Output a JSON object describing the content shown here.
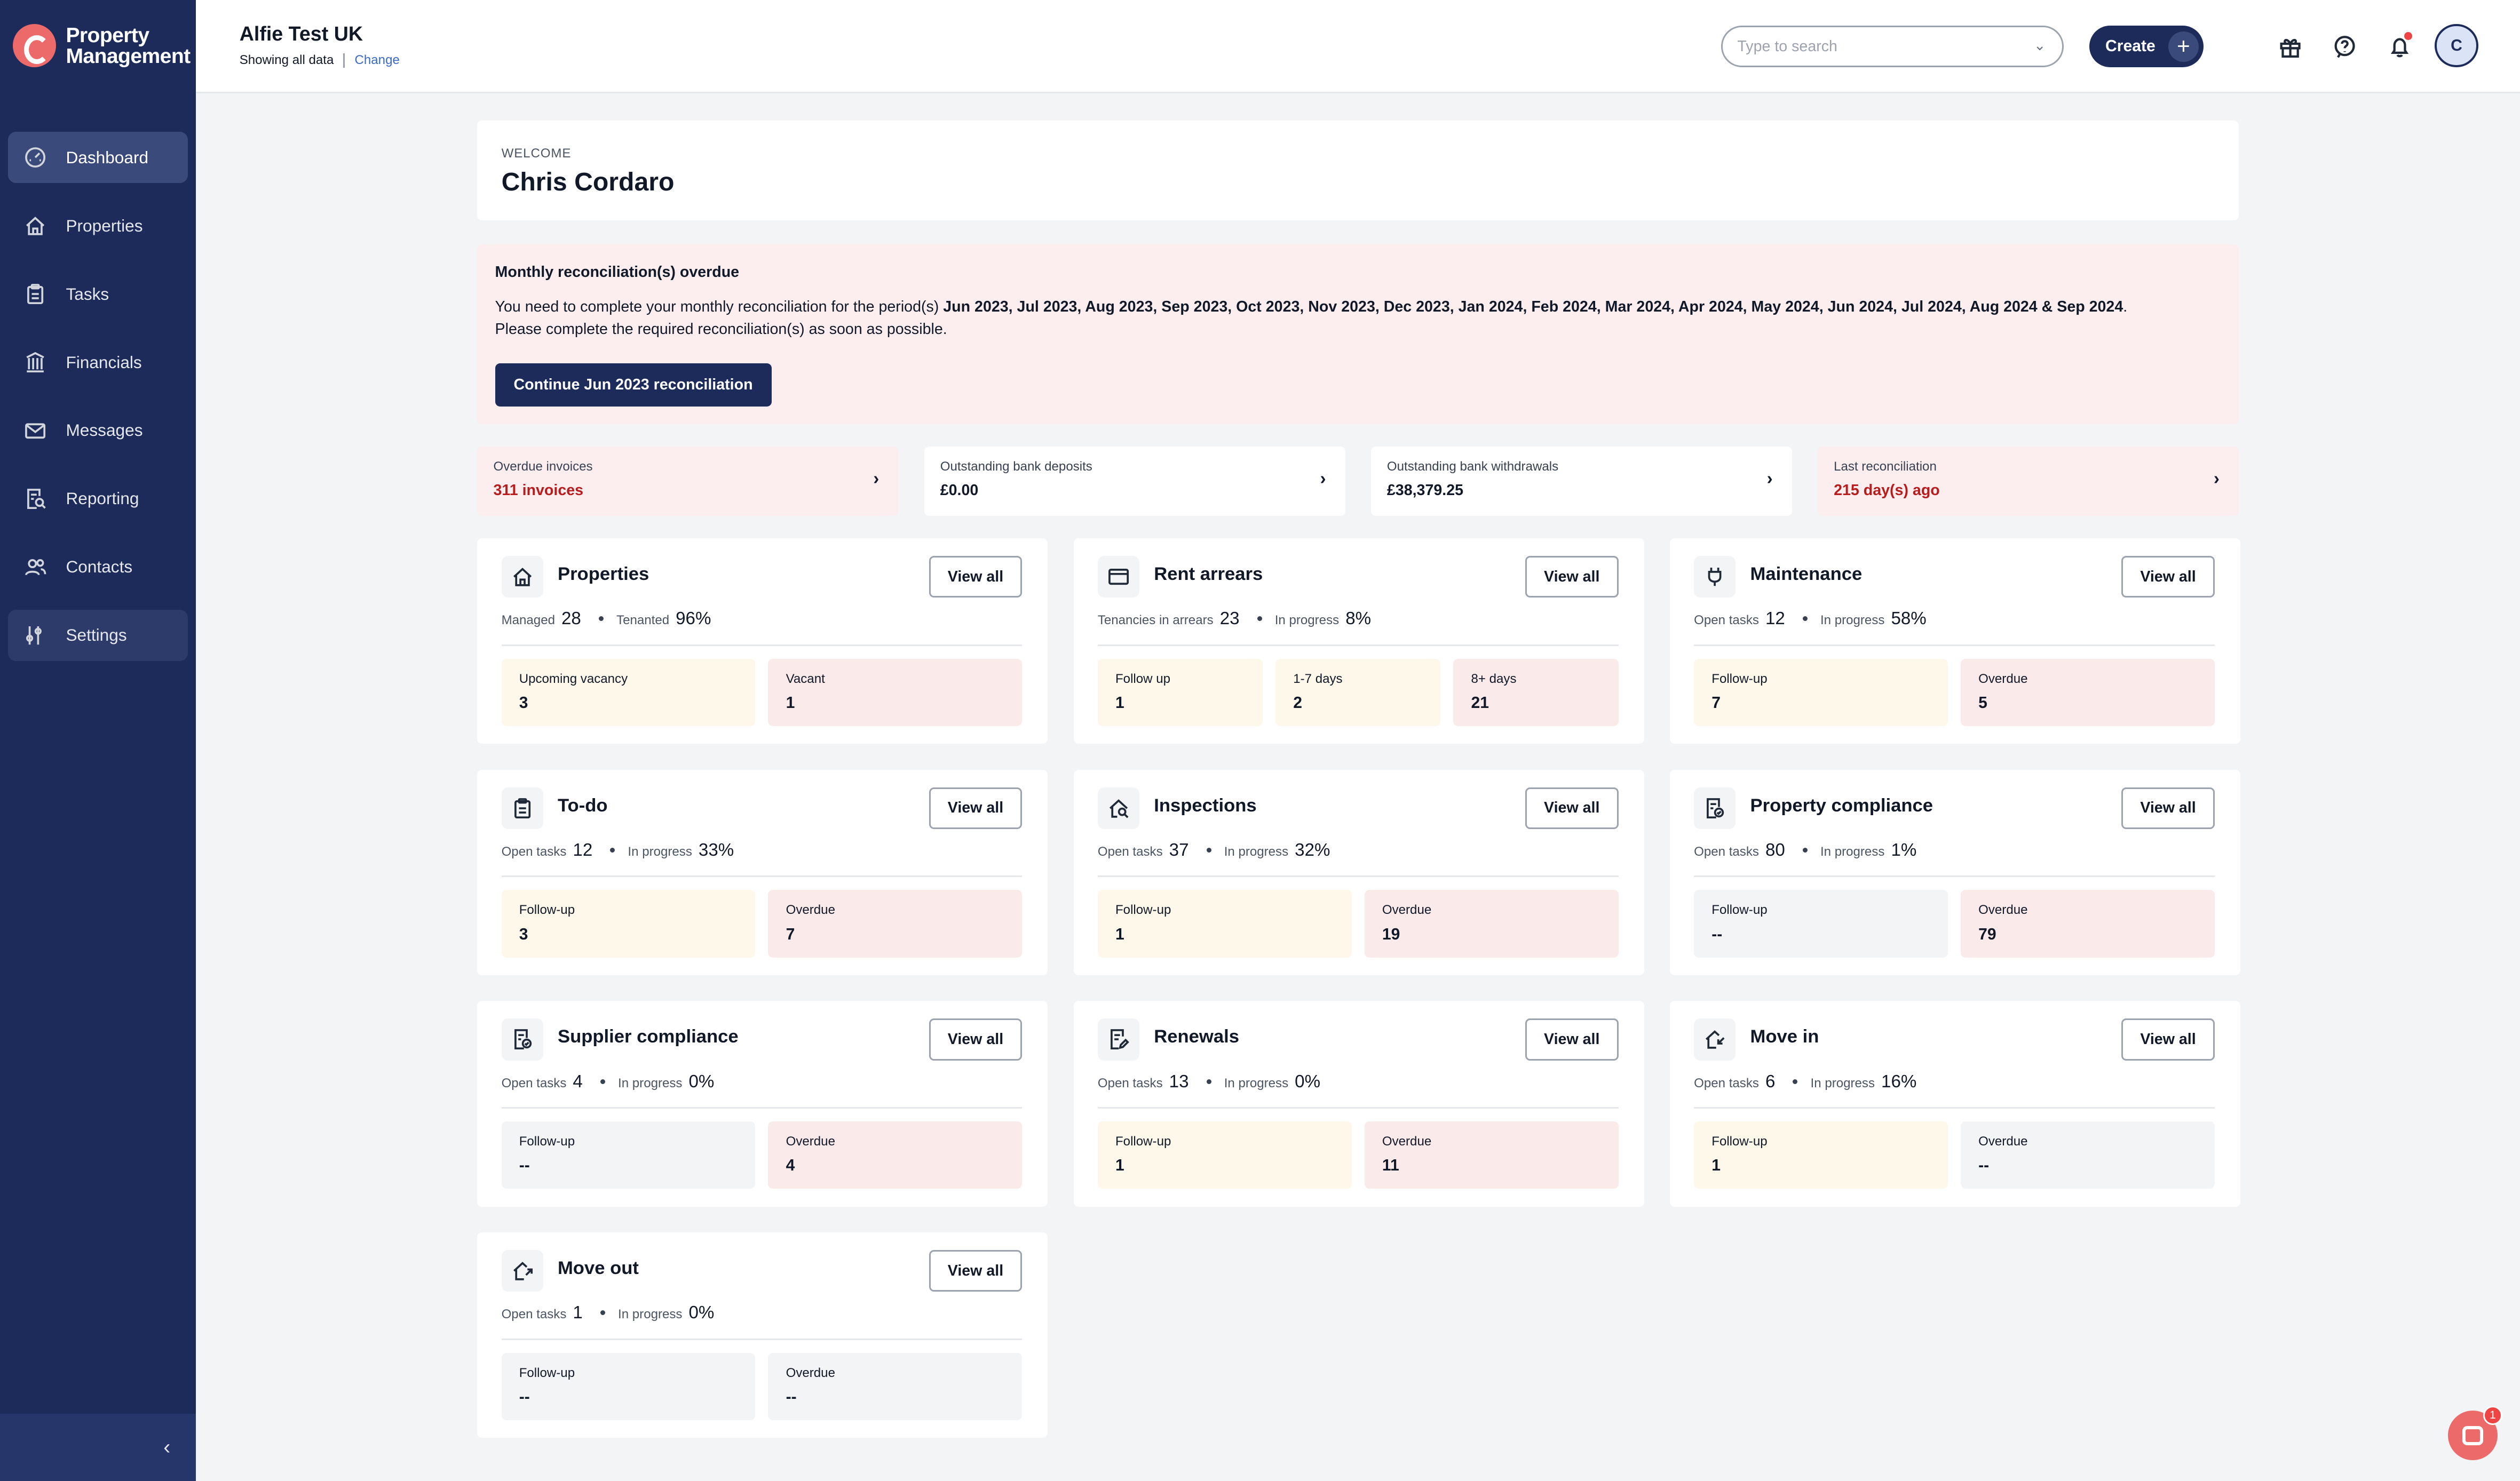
{
  "brand": {
    "name_line1": "Property",
    "name_line2": "Management",
    "color": "#ec6a6a"
  },
  "sidebar": {
    "items": [
      {
        "label": "Dashboard",
        "icon": "gauge-icon"
      },
      {
        "label": "Properties",
        "icon": "house-icon"
      },
      {
        "label": "Tasks",
        "icon": "clipboard-icon"
      },
      {
        "label": "Financials",
        "icon": "bank-icon"
      },
      {
        "label": "Messages",
        "icon": "envelope-icon"
      },
      {
        "label": "Reporting",
        "icon": "report-search-icon"
      },
      {
        "label": "Contacts",
        "icon": "people-icon"
      },
      {
        "label": "Settings",
        "icon": "sliders-icon"
      }
    ],
    "collapse_icon": "‹"
  },
  "header": {
    "account_name": "Alfie Test UK",
    "showing": "Showing all data",
    "change": "Change",
    "search_placeholder": "Type to search",
    "create_label": "Create",
    "avatar_initial": "C"
  },
  "welcome": {
    "label": "WELCOME",
    "name": "Chris Cordaro"
  },
  "alert": {
    "title": "Monthly reconciliation(s) overdue",
    "msg_prefix": "You need to complete your monthly reconciliation for the period(s) ",
    "periods": "Jun 2023, Jul 2023, Aug 2023, Sep 2023, Oct 2023, Nov 2023, Dec 2023, Jan 2024, Feb 2024, Mar 2024, Apr 2024, May 2024, Jun 2024, Jul 2024, Aug 2024 & Sep 2024",
    "msg_suffix": ".",
    "msg_line2": "Please complete the required reconciliation(s) as soon as possible.",
    "button": "Continue Jun 2023 reconciliation"
  },
  "summary": [
    {
      "label": "Overdue invoices",
      "value": "311 invoices"
    },
    {
      "label": "Outstanding bank deposits",
      "value": "£0.00"
    },
    {
      "label": "Outstanding bank withdrawals",
      "value": "£38,379.25"
    },
    {
      "label": "Last reconciliation",
      "value": "215 day(s) ago"
    }
  ],
  "view_all": "View all",
  "widgets": {
    "properties": {
      "title": "Properties",
      "s1_label": "Managed",
      "s1_value": "28",
      "s2_label": "Tenanted",
      "s2_value": "96%",
      "tiles": [
        {
          "label": "Upcoming vacancy",
          "value": "3"
        },
        {
          "label": "Vacant",
          "value": "1"
        }
      ]
    },
    "rent_arrears": {
      "title": "Rent arrears",
      "s1_label": "Tenancies in arrears",
      "s1_value": "23",
      "s2_label": "In progress",
      "s2_value": "8%",
      "tiles": [
        {
          "label": "Follow up",
          "value": "1"
        },
        {
          "label": "1-7 days",
          "value": "2"
        },
        {
          "label": "8+ days",
          "value": "21"
        }
      ]
    },
    "maintenance": {
      "title": "Maintenance",
      "s1_label": "Open tasks",
      "s1_value": "12",
      "s2_label": "In progress",
      "s2_value": "58%",
      "tiles": [
        {
          "label": "Follow-up",
          "value": "7"
        },
        {
          "label": "Overdue",
          "value": "5"
        }
      ]
    },
    "todo": {
      "title": "To-do",
      "s1_label": "Open tasks",
      "s1_value": "12",
      "s2_label": "In progress",
      "s2_value": "33%",
      "tiles": [
        {
          "label": "Follow-up",
          "value": "3"
        },
        {
          "label": "Overdue",
          "value": "7"
        }
      ]
    },
    "inspections": {
      "title": "Inspections",
      "s1_label": "Open tasks",
      "s1_value": "37",
      "s2_label": "In progress",
      "s2_value": "32%",
      "tiles": [
        {
          "label": "Follow-up",
          "value": "1"
        },
        {
          "label": "Overdue",
          "value": "19"
        }
      ]
    },
    "property_compliance": {
      "title": "Property compliance",
      "s1_label": "Open tasks",
      "s1_value": "80",
      "s2_label": "In progress",
      "s2_value": "1%",
      "tiles": [
        {
          "label": "Follow-up",
          "value": "--"
        },
        {
          "label": "Overdue",
          "value": "79"
        }
      ]
    },
    "supplier_compliance": {
      "title": "Supplier compliance",
      "s1_label": "Open tasks",
      "s1_value": "4",
      "s2_label": "In progress",
      "s2_value": "0%",
      "tiles": [
        {
          "label": "Follow-up",
          "value": "--"
        },
        {
          "label": "Overdue",
          "value": "4"
        }
      ]
    },
    "renewals": {
      "title": "Renewals",
      "s1_label": "Open tasks",
      "s1_value": "13",
      "s2_label": "In progress",
      "s2_value": "0%",
      "tiles": [
        {
          "label": "Follow-up",
          "value": "1"
        },
        {
          "label": "Overdue",
          "value": "11"
        }
      ]
    },
    "move_in": {
      "title": "Move in",
      "s1_label": "Open tasks",
      "s1_value": "6",
      "s2_label": "In progress",
      "s2_value": "16%",
      "tiles": [
        {
          "label": "Follow-up",
          "value": "1"
        },
        {
          "label": "Overdue",
          "value": "--"
        }
      ]
    },
    "move_out": {
      "title": "Move out",
      "s1_label": "Open tasks",
      "s1_value": "1",
      "s2_label": "In progress",
      "s2_value": "0%",
      "tiles": [
        {
          "label": "Follow-up",
          "value": "--"
        },
        {
          "label": "Overdue",
          "value": "--"
        }
      ]
    }
  },
  "chat": {
    "badge": "1"
  },
  "colors": {
    "sidebar": "#1c2b5a",
    "alert_bg": "#fceeee",
    "danger_text": "#b91c1c",
    "accent_link": "#3b6bc4"
  }
}
